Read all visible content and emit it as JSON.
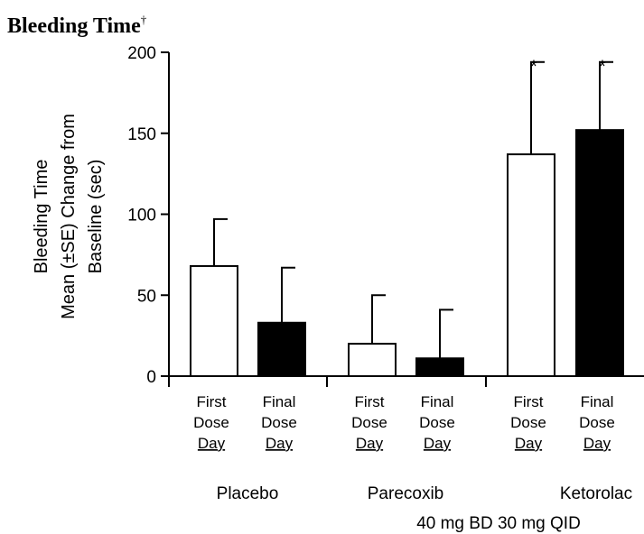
{
  "chart_data": {
    "type": "bar",
    "title": "Bleeding Time",
    "title_mark": "†",
    "ylabel_lines": [
      "Bleeding Time",
      "Mean (±SE) Change from",
      "Baseline (sec)"
    ],
    "ylim": [
      0,
      200
    ],
    "yticks": [
      "0",
      "50",
      "100",
      "150",
      "200"
    ],
    "grid": false,
    "legend": "none",
    "groups": [
      {
        "name": "Placebo",
        "bars": [
          {
            "label_lines": [
              "First",
              "Dose",
              "Day"
            ],
            "value": 68,
            "error": 29,
            "fill": "#ffffff",
            "mark": ""
          },
          {
            "label_lines": [
              "Final",
              "Dose",
              "Day"
            ],
            "value": 33,
            "error": 34,
            "fill": "#000000",
            "mark": ""
          }
        ]
      },
      {
        "name": "Parecoxib",
        "bars": [
          {
            "label_lines": [
              "First",
              "Dose",
              "Day"
            ],
            "value": 20,
            "error": 30,
            "fill": "#ffffff",
            "mark": ""
          },
          {
            "label_lines": [
              "Final",
              "Dose",
              "Day"
            ],
            "value": 11,
            "error": 30,
            "fill": "#000000",
            "mark": ""
          }
        ]
      },
      {
        "name": "Ketorolac",
        "bars": [
          {
            "label_lines": [
              "First",
              "Dose",
              "Day"
            ],
            "value": 137,
            "error": 57,
            "fill": "#ffffff",
            "mark": "*"
          },
          {
            "label_lines": [
              "Final",
              "Dose",
              "Day"
            ],
            "value": 152,
            "error": 42,
            "fill": "#000000",
            "mark": "*"
          }
        ]
      }
    ],
    "dose_note": "40 mg BD 30 mg QID"
  }
}
